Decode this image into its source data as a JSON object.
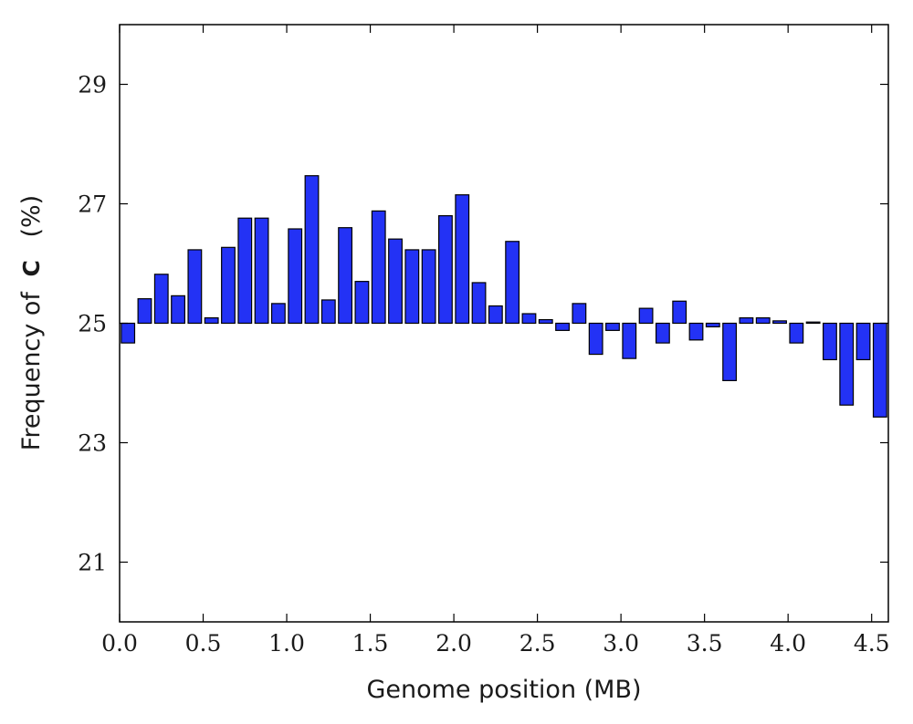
{
  "chart_data": {
    "type": "bar",
    "title": "",
    "xlabel": "Genome position (MB)",
    "ylabel_prefix": "Frequency of",
    "ylabel_letter": "C",
    "ylabel_suffix": "(%)",
    "xlim": [
      0.0,
      4.6
    ],
    "ylim": [
      20.0,
      30.0
    ],
    "baseline": 25.0,
    "bar_width": 0.08,
    "bar_color": "#2332f5",
    "edge_color": "#000000",
    "grid": false,
    "xticks": [
      0.0,
      0.5,
      1.0,
      1.5,
      2.0,
      2.5,
      3.0,
      3.5,
      4.0,
      4.5
    ],
    "xtick_labels": [
      "0.0",
      "0.5",
      "1.0",
      "1.5",
      "2.0",
      "2.5",
      "3.0",
      "3.5",
      "4.0",
      "4.5"
    ],
    "yticks": [
      21,
      23,
      25,
      27,
      29
    ],
    "ytick_labels": [
      "21",
      "23",
      "25",
      "27",
      "29"
    ],
    "x": [
      0.05,
      0.15,
      0.25,
      0.35,
      0.45,
      0.55,
      0.65,
      0.75,
      0.85,
      0.95,
      1.05,
      1.15,
      1.25,
      1.35,
      1.45,
      1.55,
      1.65,
      1.75,
      1.85,
      1.95,
      2.05,
      2.15,
      2.25,
      2.35,
      2.45,
      2.55,
      2.65,
      2.75,
      2.85,
      2.95,
      3.05,
      3.15,
      3.25,
      3.35,
      3.45,
      3.55,
      3.65,
      3.75,
      3.85,
      3.95,
      4.05,
      4.15,
      4.25,
      4.35,
      4.45,
      4.55
    ],
    "values": [
      24.67,
      25.41,
      25.82,
      25.46,
      26.23,
      25.09,
      26.27,
      26.76,
      26.76,
      25.33,
      26.58,
      27.47,
      25.39,
      26.6,
      25.7,
      26.88,
      26.41,
      26.23,
      26.23,
      26.8,
      27.15,
      25.68,
      25.29,
      26.37,
      25.16,
      25.06,
      24.88,
      25.33,
      24.48,
      24.88,
      24.41,
      25.25,
      24.67,
      25.37,
      24.72,
      24.94,
      24.04,
      25.09,
      25.09,
      25.04,
      24.67,
      25.02,
      24.39,
      23.63,
      24.39,
      23.43
    ]
  }
}
